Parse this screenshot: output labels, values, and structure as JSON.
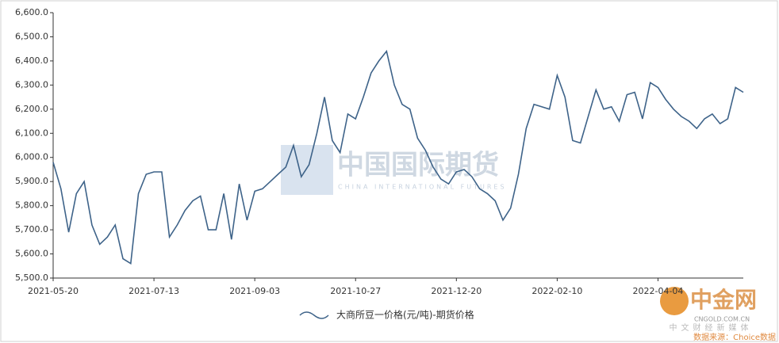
{
  "chart_data": {
    "type": "line",
    "categories": [
      "2021-05-20",
      null,
      null,
      null,
      null,
      null,
      null,
      null,
      null,
      null,
      null,
      null,
      null,
      "2021-07-13",
      null,
      null,
      null,
      null,
      null,
      null,
      null,
      null,
      null,
      null,
      null,
      null,
      "2021-09-03",
      null,
      null,
      null,
      null,
      null,
      null,
      null,
      null,
      null,
      null,
      null,
      null,
      "2021-10-27",
      null,
      null,
      null,
      null,
      null,
      null,
      null,
      null,
      null,
      null,
      null,
      null,
      "2021-12-20",
      null,
      null,
      null,
      null,
      null,
      null,
      null,
      null,
      null,
      null,
      null,
      null,
      "2022-02-10",
      null,
      null,
      null,
      null,
      null,
      null,
      null,
      null,
      null,
      null,
      null,
      null,
      "2022-04-04",
      null,
      null,
      null,
      null,
      null,
      null,
      null,
      null,
      null,
      null,
      null
    ],
    "series": [
      {
        "name": "大商所豆一价格(元/吨)-期货价格",
        "color": "#3e6389",
        "values": [
          5980,
          5870,
          5690,
          5850,
          5900,
          5720,
          5640,
          5670,
          5720,
          5580,
          5560,
          5850,
          5930,
          5940,
          5940,
          5670,
          5720,
          5780,
          5820,
          5840,
          5700,
          5700,
          5850,
          5660,
          5890,
          5740,
          5860,
          5870,
          5900,
          5930,
          5960,
          6050,
          5920,
          5970,
          6100,
          6250,
          6070,
          6020,
          6180,
          6160,
          6250,
          6350,
          6400,
          6440,
          6300,
          6220,
          6200,
          6080,
          6030,
          5960,
          5910,
          5890,
          5940,
          5950,
          5920,
          5870,
          5850,
          5820,
          5740,
          5790,
          5930,
          6120,
          6220,
          6210,
          6200,
          6340,
          6250,
          6070,
          6060,
          6170,
          6280,
          6200,
          6210,
          6150,
          6260,
          6270,
          6160,
          6310,
          6290,
          6240,
          6200,
          6170,
          6150,
          6120,
          6160,
          6180,
          6140,
          6160,
          6290,
          6270
        ]
      }
    ],
    "ylim": [
      5500,
      6600
    ],
    "yticks": [
      {
        "value": 5500,
        "label": "5,500.0"
      },
      {
        "value": 5600,
        "label": "5,600.0"
      },
      {
        "value": 5700,
        "label": "5,700.0"
      },
      {
        "value": 5800,
        "label": "5,800.0"
      },
      {
        "value": 5900,
        "label": "5,900.0"
      },
      {
        "value": 6000,
        "label": "6,000.0"
      },
      {
        "value": 6100,
        "label": "6,100.0"
      },
      {
        "value": 6200,
        "label": "6,200.0"
      },
      {
        "value": 6300,
        "label": "6,300.0"
      },
      {
        "value": 6400,
        "label": "6,400.0"
      },
      {
        "value": 6500,
        "label": "6,500.0"
      },
      {
        "value": 6600,
        "label": "6,600.0"
      }
    ],
    "legend": "bottom"
  },
  "watermarks": {
    "center": "中国国际期货",
    "center_sub": "CHINA INTERNATIONAL FUTURES",
    "logo": "中金网",
    "logo_url": "CNGOLD.COM.CN",
    "logo_slogan": "中文财经新媒体",
    "source": "数据来源：Choice数据"
  }
}
